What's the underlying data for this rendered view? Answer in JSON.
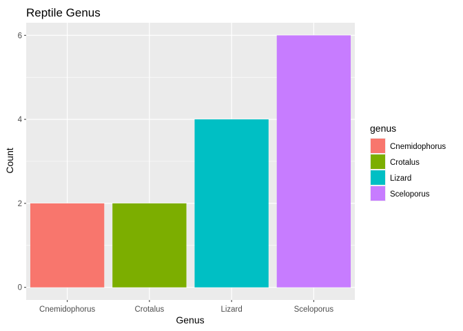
{
  "chart_data": {
    "type": "bar",
    "title": "Reptile Genus",
    "xlabel": "Genus",
    "ylabel": "Count",
    "categories": [
      "Cnemidophorus",
      "Crotalus",
      "Lizard",
      "Sceloporus"
    ],
    "values": [
      2,
      2,
      4,
      6
    ],
    "colors": [
      "#F8766D",
      "#7CAE00",
      "#00BFC4",
      "#C77CFF"
    ],
    "ylim": [
      -0.3,
      6.3
    ],
    "yticks": [
      0,
      2,
      4,
      6
    ],
    "grid": true,
    "panel_background": "#EBEBEB",
    "legend": {
      "title": "genus",
      "placement": "right",
      "entries": [
        "Cnemidophorus",
        "Crotalus",
        "Lizard",
        "Sceloporus"
      ]
    }
  }
}
